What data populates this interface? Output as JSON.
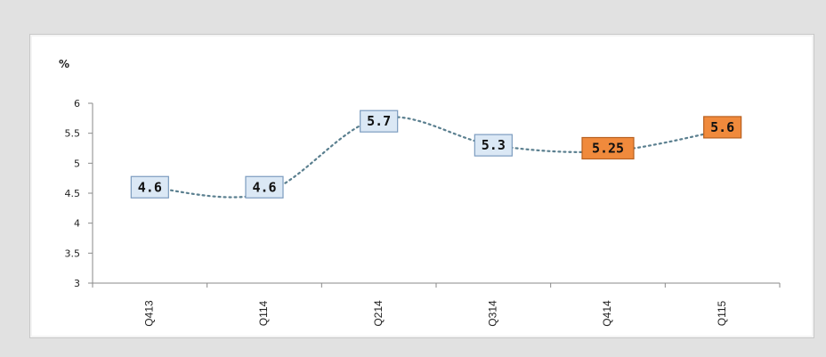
{
  "chart_data": {
    "type": "line",
    "title": "",
    "xlabel": "",
    "ylabel": "%",
    "categories": [
      "Q413",
      "Q114",
      "Q214",
      "Q314",
      "Q414",
      "Q115"
    ],
    "series": [
      {
        "values": [
          4.6,
          4.6,
          5.7,
          5.3,
          5.25,
          5.6
        ],
        "labels": [
          "4.6",
          "4.6",
          "5.7",
          "5.3",
          "5.25",
          "5.6"
        ],
        "label_kinds": [
          "actual",
          "actual",
          "actual",
          "actual",
          "forecast",
          "forecast"
        ]
      }
    ],
    "line_values": [
      4.6,
      4.5,
      5.75,
      5.3,
      5.2,
      5.55
    ],
    "ylim": [
      3,
      6
    ],
    "yticks": [
      "3",
      "3.5",
      "4",
      "4.5",
      "5",
      "5.5",
      "6"
    ],
    "grid": false,
    "legend": "none",
    "line_style": "dotted",
    "colors": {
      "line": "#5a7f8f",
      "actual_label_fill": "#dbe8f5",
      "actual_label_border": "#7c9cbf",
      "forecast_label_fill": "#f08a3c",
      "forecast_label_border": "#b8601f",
      "axis": "#8a8a8a",
      "background": "#e1e1e1",
      "plot_background": "#ffffff"
    }
  }
}
